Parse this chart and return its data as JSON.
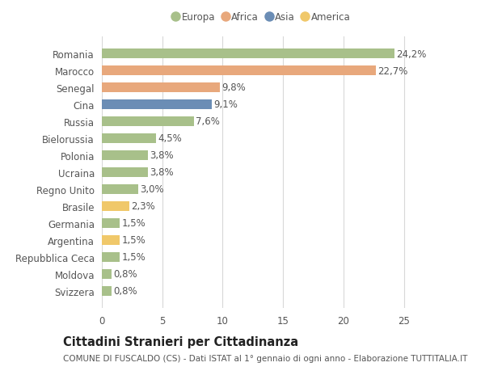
{
  "countries": [
    "Romania",
    "Marocco",
    "Senegal",
    "Cina",
    "Russia",
    "Bielorussia",
    "Polonia",
    "Ucraina",
    "Regno Unito",
    "Brasile",
    "Germania",
    "Argentina",
    "Repubblica Ceca",
    "Moldova",
    "Svizzera"
  ],
  "values": [
    24.2,
    22.7,
    9.8,
    9.1,
    7.6,
    4.5,
    3.8,
    3.8,
    3.0,
    2.3,
    1.5,
    1.5,
    1.5,
    0.8,
    0.8
  ],
  "labels": [
    "24,2%",
    "22,7%",
    "9,8%",
    "9,1%",
    "7,6%",
    "4,5%",
    "3,8%",
    "3,8%",
    "3,0%",
    "2,3%",
    "1,5%",
    "1,5%",
    "1,5%",
    "0,8%",
    "0,8%"
  ],
  "continents": [
    "Europa",
    "Africa",
    "Africa",
    "Asia",
    "Europa",
    "Europa",
    "Europa",
    "Europa",
    "Europa",
    "America",
    "Europa",
    "America",
    "Europa",
    "Europa",
    "Europa"
  ],
  "colors": {
    "Europa": "#a8c08a",
    "Africa": "#e8a87c",
    "Asia": "#6b8db5",
    "America": "#f0c86a"
  },
  "xlim": [
    0,
    26.5
  ],
  "xticks": [
    0,
    5,
    10,
    15,
    20,
    25
  ],
  "title": "Cittadini Stranieri per Cittadinanza",
  "subtitle": "COMUNE DI FUSCALDO (CS) - Dati ISTAT al 1° gennaio di ogni anno - Elaborazione TUTTITALIA.IT",
  "background_color": "#ffffff",
  "bar_height": 0.55,
  "grid_color": "#d8d8d8",
  "text_color": "#555555",
  "label_fontsize": 8.5,
  "tick_fontsize": 8.5,
  "title_fontsize": 10.5,
  "subtitle_fontsize": 7.5,
  "legend_order": [
    "Europa",
    "Africa",
    "Asia",
    "America"
  ]
}
